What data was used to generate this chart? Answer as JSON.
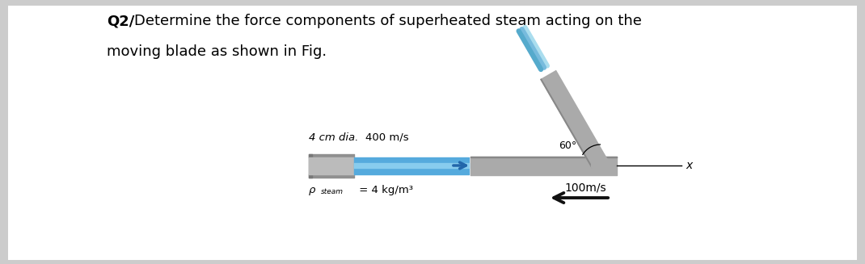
{
  "bg_color": "#cccccc",
  "inner_bg": "#ffffff",
  "title_q": "Q2/",
  "title_line1": "Determine the force components of superheated steam acting on the",
  "title_line2": "moving blade as shown in Fig.",
  "label_dia": "4 cm dia.",
  "label_vel_in": "400 m/s",
  "label_rho": "ρ",
  "label_rho_sub": "steam",
  "label_rho_val": " = 4 kg/m³",
  "label_vel_out": "100m/s",
  "label_angle": "60°",
  "label_x": "x",
  "pipe_gray": "#909090",
  "pipe_gray_dark": "#787878",
  "pipe_blue": "#55aadd",
  "pipe_blue_light": "#88ccee",
  "blade_gray": "#aaaaaa",
  "blade_dark": "#888888",
  "steam_blue1": "#aaddee",
  "steam_blue2": "#77bbdd",
  "steam_blue3": "#55aacc",
  "arrow_color": "#111111",
  "text_color": "#000000",
  "title_fontsize": 13,
  "label_fontsize": 9.5,
  "fig_w": 10.7,
  "fig_h": 3.27,
  "dpi": 100
}
